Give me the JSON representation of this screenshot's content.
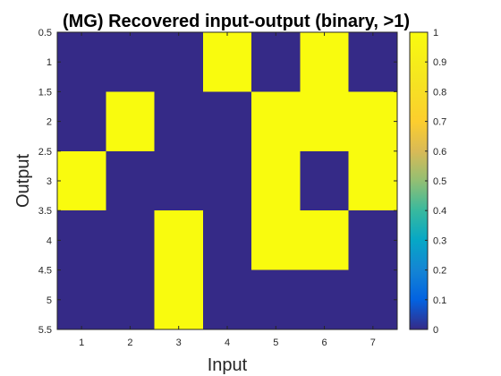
{
  "chart_data": {
    "type": "heatmap",
    "title": "(MG) Recovered input-output (binary, >1)",
    "xlabel": "Input",
    "ylabel": "Output",
    "x_categories": [
      1,
      2,
      3,
      4,
      5,
      6,
      7
    ],
    "y_categories": [
      1,
      2,
      3,
      4,
      5
    ],
    "xlim": [
      0.5,
      7.5
    ],
    "ylim": [
      0.5,
      5.5
    ],
    "x_ticks": [
      "1",
      "2",
      "3",
      "4",
      "5",
      "6",
      "7"
    ],
    "y_ticks": [
      "0.5",
      "1",
      "1.5",
      "2",
      "2.5",
      "3",
      "3.5",
      "4",
      "4.5",
      "5",
      "5.5"
    ],
    "values": [
      [
        0,
        0,
        0,
        1,
        0,
        1,
        0
      ],
      [
        0,
        1,
        0,
        0,
        1,
        1,
        1
      ],
      [
        1,
        0,
        0,
        0,
        1,
        0,
        1
      ],
      [
        0,
        0,
        1,
        0,
        1,
        1,
        0
      ],
      [
        0,
        0,
        1,
        0,
        0,
        0,
        0
      ]
    ],
    "color_low": "#352a87",
    "color_high": "#f9fb0e",
    "colorbar": {
      "range": [
        0,
        1
      ],
      "ticks": [
        "0",
        "0.1",
        "0.2",
        "0.3",
        "0.4",
        "0.5",
        "0.6",
        "0.7",
        "0.8",
        "0.9",
        "1"
      ],
      "colormap": "parula"
    }
  }
}
